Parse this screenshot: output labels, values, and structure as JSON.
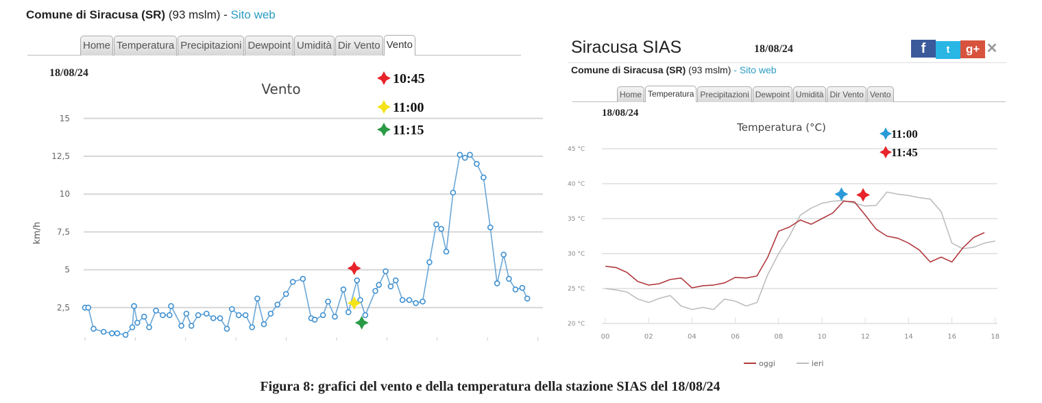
{
  "left_panel": {
    "station": "Comune di Siracusa (SR)",
    "altitude": "(93 mslm)",
    "separator": "-",
    "site_link": "Sito web",
    "tabs": [
      "Home",
      "Temperatura",
      "Precipitazioni",
      "Dewpoint",
      "Umidità",
      "Dir Vento",
      "Vento"
    ],
    "active_tab": 6,
    "date": "18/08/24"
  },
  "right_panel": {
    "title": "Siracusa SIAS",
    "title_date": "18/08/24",
    "social": {
      "facebook": "f",
      "twitter": "t",
      "google": "g+",
      "close": "✕"
    },
    "station": "Comune di Siracusa (SR)",
    "altitude": "(93 mslm)",
    "separator": "-",
    "site_link": "Sito web",
    "tabs": [
      "Home",
      "Temperatura",
      "Precipitazioni",
      "Dewpoint",
      "Umidità",
      "Dir Vento",
      "Vento"
    ],
    "active_tab": 1,
    "date": "18/08/24"
  },
  "caption": "Figura 8: grafici del vento e della temperatura della stazione SIAS del 18/08/24",
  "chart_data": [
    {
      "type": "line",
      "title": "Vento",
      "xlabel": "",
      "ylabel": "km/h",
      "xlim": [
        0,
        18
      ],
      "ylim": [
        0,
        15
      ],
      "yticks": [
        "2,5",
        "5",
        "7,5",
        "10",
        "12,5",
        "15"
      ],
      "ytick_values": [
        2.5,
        5,
        7.5,
        10,
        12.5,
        15
      ],
      "grid": true,
      "series": [
        {
          "name": "Vento",
          "color": "#6aa6d6",
          "x": [
            0,
            0.13,
            0.34,
            0.74,
            1.07,
            1.28,
            1.61,
            1.88,
            1.95,
            2.08,
            2.35,
            2.55,
            2.82,
            3.09,
            3.36,
            3.42,
            3.83,
            4.03,
            4.23,
            4.5,
            4.83,
            5.1,
            5.37,
            5.64,
            5.84,
            6.11,
            6.38,
            6.64,
            6.85,
            7.11,
            7.38,
            7.65,
            7.99,
            8.26,
            8.66,
            8.99,
            9.13,
            9.46,
            9.66,
            9.93,
            10.27,
            10.47,
            10.81,
            10.94,
            11.14,
            11.54,
            11.68,
            11.95,
            12.15,
            12.35,
            12.62,
            12.89,
            13.15,
            13.42,
            13.69,
            13.96,
            14.16,
            14.36,
            14.63,
            14.9,
            15.1,
            15.3,
            15.57,
            15.84,
            16.11,
            16.38,
            16.64,
            16.85,
            17.11,
            17.38,
            17.58
          ],
          "y": [
            2.5,
            2.5,
            1.1,
            0.9,
            0.8,
            0.8,
            0.7,
            1.2,
            2.6,
            1.5,
            1.9,
            1.2,
            2.3,
            2.0,
            2.0,
            2.6,
            1.3,
            2.1,
            1.3,
            2.0,
            2.1,
            1.8,
            1.8,
            1.1,
            2.4,
            2.0,
            2.0,
            1.2,
            3.1,
            1.4,
            2.1,
            2.7,
            3.4,
            4.2,
            4.4,
            1.8,
            1.7,
            2.0,
            2.9,
            1.9,
            3.7,
            2.2,
            4.3,
            3.0,
            2.0,
            3.6,
            4.0,
            4.9,
            3.9,
            4.3,
            3.0,
            3.0,
            2.8,
            2.9,
            5.5,
            8.0,
            7.7,
            6.2,
            10.1,
            12.6,
            12.4,
            12.6,
            12.0,
            11.1,
            7.8,
            4.1,
            6.0,
            4.4,
            3.7,
            3.8,
            3.1
          ]
        }
      ],
      "annotations": [
        {
          "label": "10:45",
          "color": "#e8232a",
          "x": 10.7,
          "y": 5.1
        },
        {
          "label": "11:00",
          "color": "#f5e31a",
          "x": 10.7,
          "y": 2.8
        },
        {
          "label": "11:15",
          "color": "#2a9a46",
          "x": 11.0,
          "y": 1.5
        }
      ]
    },
    {
      "type": "line",
      "title": "Temperatura (°C)",
      "xlabel": "",
      "ylabel": "",
      "xlim": [
        0,
        18
      ],
      "ylim": [
        20,
        45
      ],
      "xticks": [
        "00",
        "02",
        "04",
        "06",
        "08",
        "10",
        "12",
        "14",
        "16",
        "18"
      ],
      "xtick_values": [
        0,
        2,
        4,
        6,
        8,
        10,
        12,
        14,
        16,
        18
      ],
      "yticks": [
        "20 °C",
        "25 °C",
        "30 °C",
        "35 °C",
        "40 °C",
        "45 °C"
      ],
      "ytick_values": [
        20,
        25,
        30,
        35,
        40,
        45
      ],
      "grid": true,
      "legend_position": "bottom",
      "series": [
        {
          "name": "oggi",
          "color": "#b0383c",
          "x": [
            0,
            0.5,
            1,
            1.5,
            2,
            2.5,
            3,
            3.5,
            4,
            4.5,
            5,
            5.5,
            6,
            6.5,
            7,
            7.5,
            8,
            8.5,
            9,
            9.5,
            10,
            10.5,
            11,
            11.5,
            12,
            12.5,
            13,
            13.5,
            14,
            14.5,
            15,
            15.5,
            16,
            16.5,
            17,
            17.5
          ],
          "y": [
            28.2,
            28.0,
            27.3,
            26.0,
            25.5,
            25.7,
            26.3,
            26.5,
            25.1,
            25.4,
            25.5,
            25.8,
            26.6,
            26.5,
            26.8,
            29.5,
            33.2,
            33.8,
            34.8,
            34.2,
            35.0,
            35.8,
            37.5,
            37.4,
            35.5,
            33.5,
            32.5,
            32.2,
            31.5,
            30.5,
            28.8,
            29.5,
            28.8,
            30.8,
            32.3,
            33.0
          ]
        },
        {
          "name": "ieri",
          "color": "#bdbdbd",
          "x": [
            0,
            0.5,
            1,
            1.5,
            2,
            2.5,
            3,
            3.5,
            4,
            4.5,
            5,
            5.5,
            6,
            6.5,
            7,
            7.5,
            8,
            8.5,
            9,
            9.5,
            10,
            10.5,
            11,
            11.5,
            12,
            12.5,
            13,
            13.5,
            14,
            14.5,
            15,
            15.5,
            16,
            16.5,
            17,
            17.5,
            18
          ],
          "y": [
            25.0,
            24.8,
            24.5,
            23.5,
            23.0,
            23.6,
            24.0,
            22.5,
            22.0,
            22.3,
            22.0,
            23.5,
            23.2,
            22.5,
            23.0,
            27.0,
            30.0,
            32.5,
            35.5,
            36.5,
            37.2,
            37.5,
            37.6,
            37.2,
            36.8,
            36.9,
            38.8,
            38.5,
            38.3,
            38.0,
            37.8,
            36.0,
            31.5,
            30.7,
            30.9,
            31.5,
            31.8
          ]
        }
      ],
      "annotations": [
        {
          "label": "11:00",
          "color": "#2a9ad8",
          "x": 10.9,
          "y": 38.5
        },
        {
          "label": "11:45",
          "color": "#e8232a",
          "x": 11.9,
          "y": 38.4
        }
      ]
    }
  ]
}
